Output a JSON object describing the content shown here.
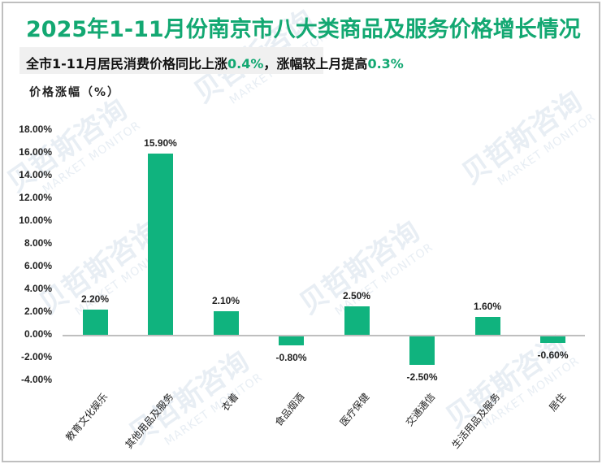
{
  "header": {
    "title": "2025年1-11月份南京市八大类商品及服务价格增长情况",
    "subtitle_prefix": "全市1-11月居民消费价格同比上涨",
    "subtitle_value1": "0.4%",
    "subtitle_mid": "，涨幅较上月提高",
    "subtitle_value2": "0.3%",
    "unit_label": "价格涨幅（%）"
  },
  "watermark": {
    "cn": "贝哲斯咨询",
    "en": "MARKET MONITOR"
  },
  "colors": {
    "bar": "#10b37e",
    "title": "#13a872",
    "highlight": "#13a872",
    "frame": "#bfbfbf",
    "subtitle_band": "#f0f0f0"
  },
  "chart_data": {
    "type": "bar",
    "title": "2025年1-11月份南京市八大类商品及服务价格增长情况",
    "subtitle": "全市1-11月居民消费价格同比上涨0.4%，涨幅较上月提高0.3%",
    "xlabel": "",
    "ylabel": "价格涨幅（%）",
    "ylim": [
      -4,
      18
    ],
    "yticks": [
      "18.00%",
      "16.00%",
      "14.00%",
      "12.00%",
      "10.00%",
      "8.00%",
      "6.00%",
      "4.00%",
      "2.00%",
      "0.00%",
      "-2.00%",
      "-4.00%"
    ],
    "grid": false,
    "legend": "none",
    "categories": [
      "教育文化娱乐",
      "其他用品及服务",
      "衣着",
      "食品烟酒",
      "医疗保健",
      "交通通信",
      "生活用品及服务",
      "居住"
    ],
    "values": [
      2.2,
      15.9,
      2.1,
      -0.8,
      2.5,
      -2.5,
      1.6,
      -0.6
    ],
    "labels": [
      "2.20%",
      "15.90%",
      "2.10%",
      "-0.80%",
      "2.50%",
      "-2.50%",
      "1.60%",
      "-0.60%"
    ]
  }
}
